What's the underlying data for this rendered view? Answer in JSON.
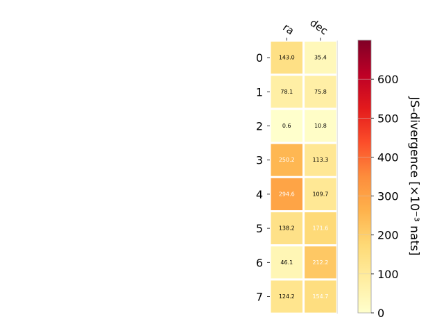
{
  "chart_data": {
    "type": "heatmap",
    "columns": [
      "ra",
      "dec"
    ],
    "rows": [
      "0",
      "1",
      "2",
      "3",
      "4",
      "5",
      "6",
      "7"
    ],
    "values": [
      [
        143.0,
        35.4
      ],
      [
        78.1,
        75.8
      ],
      [
        0.6,
        10.8
      ],
      [
        250.2,
        113.3
      ],
      [
        294.6,
        109.7
      ],
      [
        138.2,
        171.6
      ],
      [
        46.1,
        212.2
      ],
      [
        124.2,
        154.7
      ]
    ],
    "cell_labels": [
      [
        "143.0",
        "35.4"
      ],
      [
        "78.1",
        "75.8"
      ],
      [
        "0.6",
        "10.8"
      ],
      [
        "250.2",
        "113.3"
      ],
      [
        "294.6",
        "109.7"
      ],
      [
        "138.2",
        "171.6"
      ],
      [
        "46.1",
        "212.2"
      ],
      [
        "124.2",
        "154.7"
      ]
    ],
    "colormap": "YlOrRd",
    "colorbar": {
      "label": "JS-divergence [×10⁻³ nats]",
      "range": [
        0,
        700
      ],
      "ticks": [
        "0",
        "100",
        "200",
        "300",
        "400",
        "500",
        "600"
      ],
      "tick_values": [
        0,
        100,
        200,
        300,
        400,
        500,
        600
      ]
    },
    "label_color_threshold": 150,
    "colors": {
      "light_label": "#ffffff",
      "dark_label": "#000000",
      "cell_border": "#ffffff"
    }
  }
}
